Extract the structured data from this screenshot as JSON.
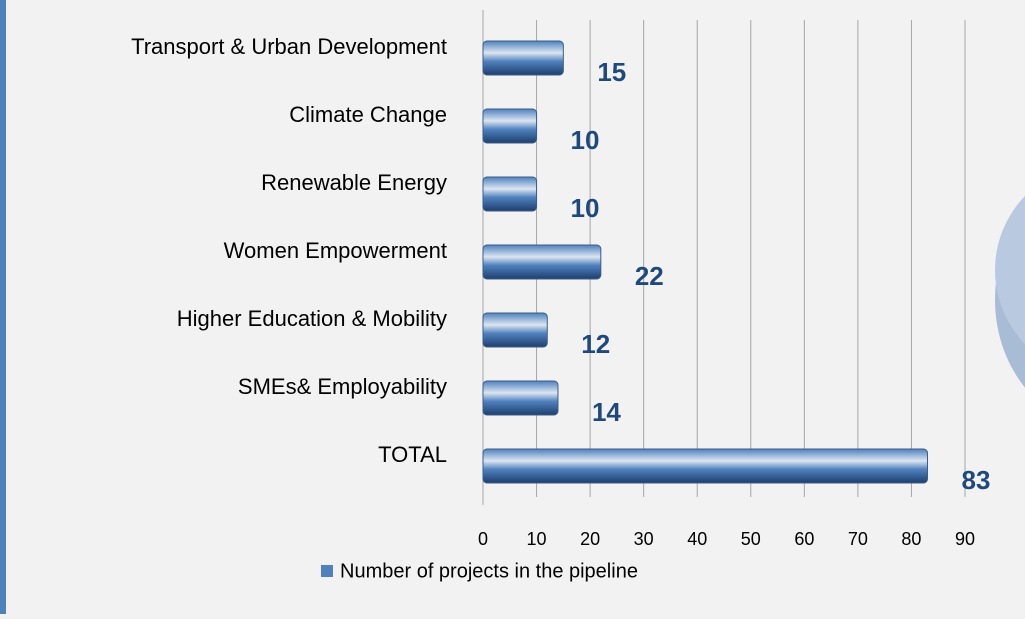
{
  "chart_data": {
    "type": "bar",
    "orientation": "horizontal",
    "categories": [
      "Transport & Urban Development",
      "Climate Change",
      "Renewable Energy",
      "Women Empowerment",
      "Higher Education & Mobility",
      "SMEs& Employability",
      "TOTAL"
    ],
    "series": [
      {
        "name": "Number of projects in the pipeline",
        "color": "#4f81bd",
        "values": [
          15,
          10,
          10,
          22,
          12,
          14,
          83
        ]
      }
    ],
    "xlim": [
      0,
      90
    ],
    "xticks": [
      0,
      10,
      20,
      30,
      40,
      50,
      60,
      70,
      80,
      90
    ],
    "grid": true,
    "legend": "bottom"
  }
}
